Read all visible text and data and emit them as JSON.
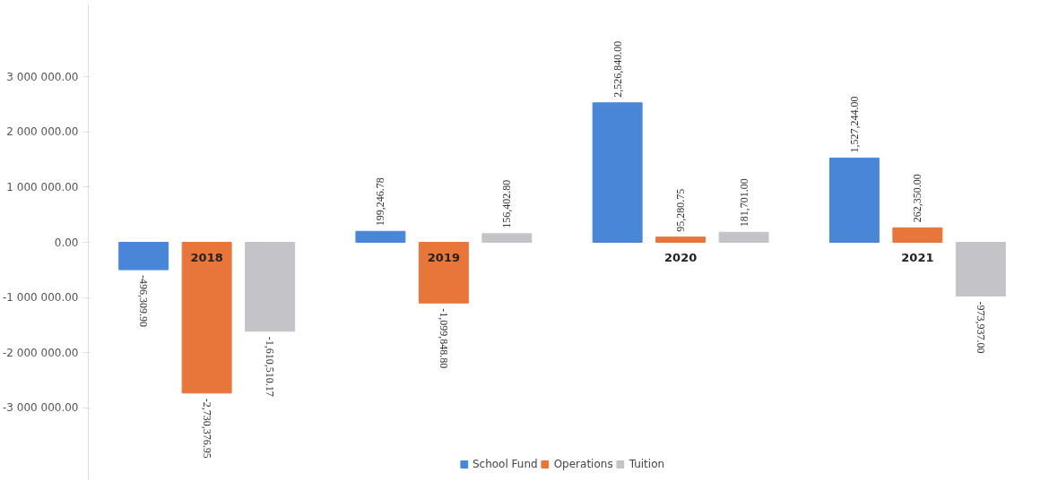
{
  "chart_data": {
    "type": "bar",
    "categories": [
      "2018",
      "2019",
      "2020",
      "2021"
    ],
    "series": [
      {
        "name": "School Fund",
        "color": "#4a86d8",
        "values": [
          -496309.9,
          199246.78,
          2526840.0,
          1527244.0
        ],
        "value_labels": [
          "-496,309.90",
          "199,246.78",
          "2,526,840.00",
          "1,527,244.00"
        ]
      },
      {
        "name": "Operations",
        "color": "#e8763a",
        "values": [
          -2730376.95,
          -1099848.8,
          95280.75,
          262350.0
        ],
        "value_labels": [
          "-2,730,376.95",
          "-1,099,848.80",
          "95,280.75",
          "262,350.00"
        ]
      },
      {
        "name": "Tuition",
        "color": "#c4c4c8",
        "values": [
          -1610510.17,
          156402.8,
          181701.0,
          -973937.0
        ],
        "value_labels": [
          "-1,610,510.17",
          "156,402.80",
          "181,701.00",
          "-973,937.00"
        ]
      }
    ],
    "ylim": [
      -4300000,
      4300000
    ],
    "yticks": [
      {
        "value": -3000000,
        "label": "-3 000 000.00"
      },
      {
        "value": -2000000,
        "label": "-2 000 000.00"
      },
      {
        "value": -1000000,
        "label": "-1 000 000.00"
      },
      {
        "value": 0,
        "label": "0.00"
      },
      {
        "value": 1000000,
        "label": "1 000 000.00"
      },
      {
        "value": 2000000,
        "label": "2 000 000.00"
      },
      {
        "value": 3000000,
        "label": "3 000 000.00"
      }
    ],
    "legend": "bottom",
    "grid": false
  }
}
